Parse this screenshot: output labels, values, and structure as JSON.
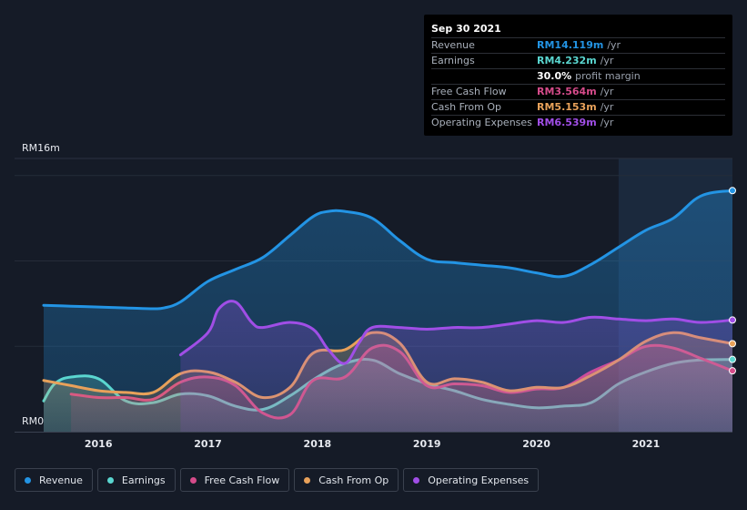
{
  "chart_data": {
    "type": "area",
    "x_axis": {
      "range": [
        2015.5,
        2021.79
      ],
      "tick_labels": [
        "2016",
        "2017",
        "2018",
        "2019",
        "2020",
        "2021"
      ],
      "ticks": [
        2016,
        2017,
        2018,
        2019,
        2020,
        2021
      ]
    },
    "y_axis": {
      "range": [
        0,
        16
      ],
      "top_label": "RM16m",
      "bottom_label": "RM0",
      "gridlines": [
        5,
        10,
        15
      ]
    },
    "highlight_start": 2020.75,
    "series": [
      {
        "name": "Revenue",
        "color": "#2394e4",
        "x": [
          2015.5,
          2015.75,
          2016.0,
          2016.25,
          2016.5,
          2016.6,
          2016.75,
          2017.0,
          2017.25,
          2017.5,
          2017.75,
          2017.96,
          2018.1,
          2018.25,
          2018.5,
          2018.75,
          2019.0,
          2019.25,
          2019.5,
          2019.75,
          2020.0,
          2020.25,
          2020.5,
          2020.75,
          2021.0,
          2021.25,
          2021.5,
          2021.79
        ],
        "values": [
          7.4,
          7.35,
          7.3,
          7.25,
          7.2,
          7.25,
          7.6,
          8.8,
          9.5,
          10.2,
          11.5,
          12.6,
          12.9,
          12.9,
          12.5,
          11.2,
          10.1,
          9.9,
          9.75,
          9.6,
          9.3,
          9.1,
          9.8,
          10.8,
          11.8,
          12.5,
          13.8,
          14.119
        ]
      },
      {
        "name": "Earnings",
        "color": "#5ad6d0",
        "x": [
          2015.5,
          2015.6,
          2015.75,
          2016.0,
          2016.25,
          2016.5,
          2016.75,
          2017.0,
          2017.25,
          2017.5,
          2017.75,
          2018.0,
          2018.25,
          2018.5,
          2018.75,
          2019.0,
          2019.25,
          2019.5,
          2019.75,
          2020.0,
          2020.25,
          2020.5,
          2020.75,
          2021.0,
          2021.25,
          2021.5,
          2021.79
        ],
        "values": [
          1.8,
          2.8,
          3.2,
          3.1,
          1.8,
          1.7,
          2.2,
          2.1,
          1.5,
          1.3,
          2.1,
          3.2,
          4.0,
          4.2,
          3.4,
          2.8,
          2.4,
          1.9,
          1.6,
          1.4,
          1.5,
          1.7,
          2.8,
          3.5,
          4.0,
          4.2,
          4.232
        ]
      },
      {
        "name": "Free Cash Flow",
        "color": "#d54b8a",
        "x": [
          2015.75,
          2016.0,
          2016.25,
          2016.5,
          2016.75,
          2017.0,
          2017.25,
          2017.5,
          2017.75,
          2017.96,
          2018.25,
          2018.5,
          2018.75,
          2019.0,
          2019.25,
          2019.5,
          2019.75,
          2020.0,
          2020.25,
          2020.5,
          2020.75,
          2021.0,
          2021.25,
          2021.5,
          2021.79
        ],
        "values": [
          2.2,
          2.0,
          2.0,
          1.9,
          2.9,
          3.2,
          2.7,
          1.1,
          1.0,
          3.0,
          3.2,
          4.9,
          4.7,
          2.7,
          2.8,
          2.7,
          2.3,
          2.5,
          2.6,
          3.5,
          4.2,
          5.0,
          4.9,
          4.3,
          3.564
        ]
      },
      {
        "name": "Cash From Op",
        "color": "#e8a15a",
        "x": [
          2015.5,
          2015.75,
          2016.0,
          2016.25,
          2016.5,
          2016.75,
          2017.0,
          2017.25,
          2017.5,
          2017.75,
          2017.96,
          2018.25,
          2018.5,
          2018.75,
          2019.0,
          2019.25,
          2019.5,
          2019.75,
          2020.0,
          2020.25,
          2020.5,
          2020.75,
          2021.0,
          2021.25,
          2021.5,
          2021.79
        ],
        "values": [
          3.0,
          2.7,
          2.4,
          2.3,
          2.3,
          3.4,
          3.5,
          2.9,
          2.0,
          2.6,
          4.6,
          4.8,
          5.8,
          5.2,
          2.9,
          3.1,
          2.9,
          2.4,
          2.6,
          2.6,
          3.3,
          4.2,
          5.3,
          5.8,
          5.5,
          5.153
        ]
      },
      {
        "name": "Operating Expenses",
        "color": "#a04ee6",
        "x": [
          2016.75,
          2017.0,
          2017.1,
          2017.25,
          2017.4,
          2017.5,
          2017.75,
          2017.96,
          2018.1,
          2018.25,
          2018.38,
          2018.5,
          2018.75,
          2019.0,
          2019.25,
          2019.5,
          2019.75,
          2020.0,
          2020.25,
          2020.5,
          2020.75,
          2021.0,
          2021.25,
          2021.5,
          2021.79
        ],
        "values": [
          4.5,
          5.8,
          7.2,
          7.6,
          6.4,
          6.1,
          6.4,
          6.0,
          4.8,
          4.0,
          5.2,
          6.1,
          6.1,
          6.0,
          6.1,
          6.1,
          6.3,
          6.5,
          6.4,
          6.7,
          6.6,
          6.5,
          6.6,
          6.4,
          6.539
        ]
      }
    ]
  },
  "tooltip": {
    "date": "Sep 30 2021",
    "rows": [
      {
        "label": "Revenue",
        "value": "RM14.119m",
        "unit": "/yr",
        "color": "#2394e4"
      },
      {
        "label": "Earnings",
        "value": "RM4.232m",
        "unit": "/yr",
        "color": "#5ad6d0"
      },
      {
        "label": "",
        "value": "30.0%",
        "unit": "profit margin",
        "color": "#ffffff"
      },
      {
        "label": "Free Cash Flow",
        "value": "RM3.564m",
        "unit": "/yr",
        "color": "#d54b8a"
      },
      {
        "label": "Cash From Op",
        "value": "RM5.153m",
        "unit": "/yr",
        "color": "#e8a15a"
      },
      {
        "label": "Operating Expenses",
        "value": "RM6.539m",
        "unit": "/yr",
        "color": "#a04ee6"
      }
    ]
  },
  "legend": [
    {
      "label": "Revenue",
      "color": "#2394e4"
    },
    {
      "label": "Earnings",
      "color": "#5ad6d0"
    },
    {
      "label": "Free Cash Flow",
      "color": "#d54b8a"
    },
    {
      "label": "Cash From Op",
      "color": "#e8a15a"
    },
    {
      "label": "Operating Expenses",
      "color": "#a04ee6"
    }
  ]
}
